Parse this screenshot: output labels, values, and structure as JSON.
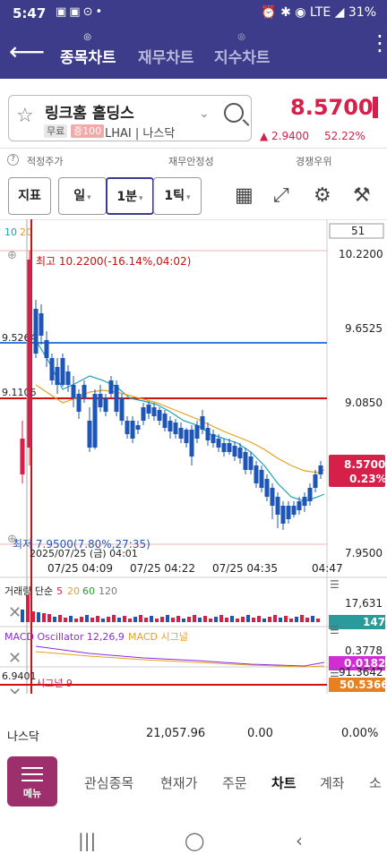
{
  "status_bar": {
    "time": "5:47",
    "battery": "31%",
    "network": "LTE"
  },
  "header": {
    "tabs": [
      {
        "label": "종목차트",
        "active": true
      },
      {
        "label": "재무차트",
        "active": false
      },
      {
        "label": "지수차트",
        "active": false
      }
    ]
  },
  "stock": {
    "name": "링크홈 홀딩스",
    "badge_free": "무료",
    "badge_margin": "증100",
    "ticker": "LHAI",
    "market": "나스닥",
    "price": "8.5700",
    "change": "▲ 2.9400",
    "change_pct": "52.22%"
  },
  "info_row": {
    "col1": "적정주가",
    "col2": "재무안정성",
    "col3": "경쟁우위"
  },
  "toolbar": {
    "indicator": "지표",
    "period": "일",
    "interval": "1분",
    "tick": "1틱"
  },
  "colors": {
    "brand": "#3c3c8a",
    "up": "#d6204a",
    "down": "#1e56b8",
    "menu": "#9e2f6d"
  },
  "chart": {
    "ma_labels": [
      "10",
      "20"
    ],
    "count_box": "51",
    "high_label": "최고 10.2200(-16.14%,04:02)",
    "low_label": "최저 7.9500(7.80%,27:35)",
    "date_label": "2025/07/25 (금) 04:01",
    "price_ticks": [
      "10.2200",
      "9.6525",
      "9.0850",
      "7.9500"
    ],
    "line_labels": [
      "9.5264",
      "9.1106"
    ],
    "current_price": "8.5700",
    "current_pct": "0.23%",
    "time_ticks": [
      "07/25 04:09",
      "07/25 04:22",
      "07/25 04:35",
      "04:47"
    ],
    "volume_title": "거래량 단순",
    "volume_ma": [
      "5",
      "20",
      "60",
      "120"
    ],
    "volume_max": "17,631",
    "volume_cur": "147",
    "macd_title": "MACD Oscillator 12,26,9",
    "macd_signal_title": "MACD 시그널",
    "macd_max": "0.3778",
    "macd_cur": "0.0182",
    "stoch_title": "시그널 9",
    "stoch_left": "6.9401",
    "stoch_max": "91.3642",
    "stoch_cur": "50.5366"
  },
  "bottom_bar": {
    "market": "나스닥",
    "index": "21,057.96",
    "change": "0.00",
    "pct": "0.00%"
  },
  "nav": {
    "menu": "메뉴",
    "items": [
      "관심종목",
      "현재가",
      "주문",
      "차트",
      "계좌",
      "소"
    ]
  }
}
